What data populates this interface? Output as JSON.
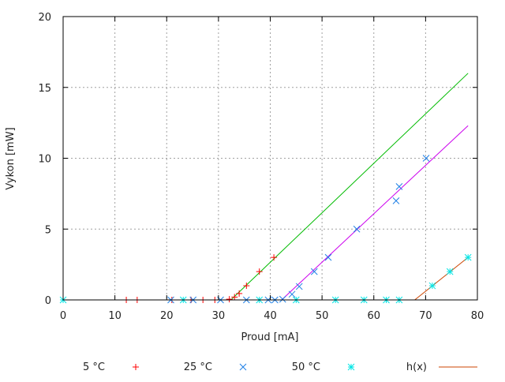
{
  "chart_data": {
    "type": "scatter",
    "xlabel": "Proud [mA]",
    "ylabel": "Vykon [mW]",
    "xlim": [
      0,
      80
    ],
    "ylim": [
      0,
      20
    ],
    "xticks": [
      "0",
      "10",
      "20",
      "30",
      "40",
      "50",
      "60",
      "70",
      "80"
    ],
    "yticks": [
      "0",
      "5",
      "10",
      "15",
      "20"
    ],
    "grid": true,
    "legend_position": "bottom",
    "series": [
      {
        "name": "5 °C",
        "marker": "plus",
        "color": "#ff0000",
        "x": [
          12.2,
          14.3,
          21.0,
          24.7,
          27.0,
          29.3,
          32.1,
          33.1,
          34.0,
          35.4,
          37.9,
          40.7
        ],
        "y": [
          0,
          0,
          0,
          0,
          0,
          0,
          0.05,
          0.2,
          0.45,
          1,
          2,
          3
        ]
      },
      {
        "name": "25 °C",
        "marker": "cross",
        "color": "#1e7fe6",
        "x": [
          20.8,
          25.1,
          30.4,
          35.4,
          39.6,
          40.9,
          42.4,
          44.2,
          45.6,
          48.5,
          51.2,
          56.7,
          64.3,
          64.9,
          70.1
        ],
        "y": [
          0,
          0,
          0,
          0,
          0,
          0,
          0.05,
          0.4,
          0.95,
          2,
          3,
          5,
          7,
          8,
          10
        ]
      },
      {
        "name": "50 °C",
        "marker": "star",
        "color": "#00e5e5",
        "x": [
          0,
          23.2,
          37.9,
          45.0,
          52.6,
          58.1,
          62.4,
          64.9,
          71.3,
          74.7,
          78.2
        ],
        "y": [
          0,
          0,
          0,
          0,
          0,
          0,
          0,
          0,
          1,
          2,
          3
        ]
      }
    ],
    "lines": [
      {
        "color": "#00bb00",
        "x": [
          32.4,
          78.2
        ],
        "y": [
          0,
          16.0
        ]
      },
      {
        "color": "#cc00ee",
        "x": [
          42.2,
          78.2
        ],
        "y": [
          0,
          12.3
        ]
      },
      {
        "name": "h(x)",
        "color": "#cc4400",
        "x": [
          67.9,
          78.2
        ],
        "y": [
          0,
          3.0
        ]
      }
    ]
  }
}
